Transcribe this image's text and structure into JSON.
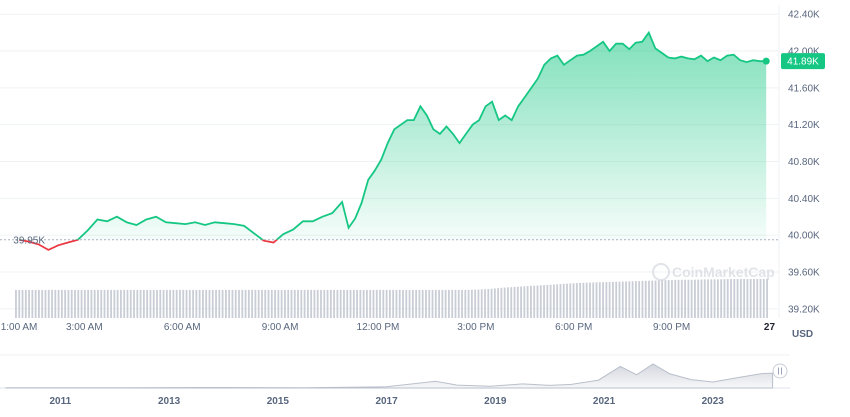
{
  "chart_data": {
    "type": "area",
    "currency_label": "USD",
    "baseline": {
      "value": 39950,
      "label": "39.95K"
    },
    "current": {
      "value": 41890,
      "label": "41.89K"
    },
    "ylim": [
      39100,
      42500
    ],
    "y_ticks": [
      {
        "value": 42400,
        "label": "42.40K"
      },
      {
        "value": 42000,
        "label": "42.00K"
      },
      {
        "value": 41600,
        "label": "41.60K"
      },
      {
        "value": 41200,
        "label": "41.20K"
      },
      {
        "value": 40800,
        "label": "40.80K"
      },
      {
        "value": 40400,
        "label": "40.40K"
      },
      {
        "value": 40000,
        "label": "40.00K"
      },
      {
        "value": 39600,
        "label": "39.60K"
      },
      {
        "value": 39200,
        "label": "39.20K"
      }
    ],
    "xlim": [
      0.6,
      24.2
    ],
    "x_ticks": [
      {
        "value": 1,
        "label": "1:00 AM"
      },
      {
        "value": 3,
        "label": "3:00 AM"
      },
      {
        "value": 6,
        "label": "6:00 AM"
      },
      {
        "value": 9,
        "label": "9:00 AM"
      },
      {
        "value": 12,
        "label": "12:00 PM"
      },
      {
        "value": 15,
        "label": "3:00 PM"
      },
      {
        "value": 18,
        "label": "6:00 PM"
      },
      {
        "value": 21,
        "label": "9:00 PM"
      },
      {
        "value": 24,
        "label": "27"
      }
    ],
    "colors": {
      "up": "#16c784",
      "down": "#ea3943",
      "volume": "#c9cdd6",
      "grid": "#eff2f5",
      "axis_text": "#58667e"
    },
    "price": {
      "x": [
        1.0,
        1.3,
        1.6,
        1.9,
        2.2,
        2.5,
        2.8,
        3.1,
        3.4,
        3.7,
        4.0,
        4.3,
        4.6,
        4.9,
        5.2,
        5.5,
        5.8,
        6.1,
        6.4,
        6.7,
        7.0,
        7.3,
        7.6,
        7.9,
        8.2,
        8.5,
        8.8,
        9.1,
        9.4,
        9.7,
        10.0,
        10.3,
        10.6,
        10.9,
        11.1,
        11.3,
        11.5,
        11.7,
        11.9,
        12.1,
        12.3,
        12.5,
        12.7,
        12.9,
        13.1,
        13.3,
        13.5,
        13.7,
        13.9,
        14.1,
        14.3,
        14.5,
        14.7,
        14.9,
        15.1,
        15.3,
        15.5,
        15.7,
        15.9,
        16.1,
        16.3,
        16.5,
        16.7,
        16.9,
        17.1,
        17.3,
        17.5,
        17.7,
        17.9,
        18.1,
        18.3,
        18.5,
        18.7,
        18.9,
        19.1,
        19.3,
        19.5,
        19.7,
        19.9,
        20.1,
        20.3,
        20.5,
        20.7,
        20.9,
        21.1,
        21.3,
        21.5,
        21.7,
        21.9,
        22.1,
        22.3,
        22.5,
        22.7,
        22.9,
        23.1,
        23.3,
        23.5,
        23.7,
        23.9
      ],
      "values": [
        39950,
        39930,
        39900,
        39840,
        39890,
        39920,
        39950,
        40050,
        40170,
        40150,
        40200,
        40140,
        40110,
        40170,
        40200,
        40140,
        40130,
        40120,
        40140,
        40110,
        40140,
        40130,
        40120,
        40100,
        40020,
        39940,
        39920,
        40010,
        40060,
        40150,
        40150,
        40200,
        40240,
        40360,
        40080,
        40180,
        40350,
        40600,
        40700,
        40820,
        41000,
        41150,
        41200,
        41250,
        41250,
        41400,
        41300,
        41150,
        41100,
        41180,
        41100,
        41000,
        41100,
        41200,
        41250,
        41400,
        41450,
        41250,
        41300,
        41250,
        41400,
        41500,
        41600,
        41700,
        41850,
        41920,
        41950,
        41850,
        41900,
        41950,
        41960,
        42000,
        42050,
        42100,
        42000,
        42080,
        42080,
        42020,
        42090,
        42100,
        42200,
        42030,
        41980,
        41930,
        41920,
        41940,
        41920,
        41910,
        41950,
        41890,
        41930,
        41900,
        41950,
        41960,
        41900,
        41880,
        41900,
        41890,
        41890
      ]
    },
    "volume_x": [
      1.0,
      24.0
    ],
    "volume_relative": [
      0.72,
      0.72,
      0.72,
      0.72,
      0.72,
      0.72,
      0.72,
      0.72,
      0.72,
      0.72,
      0.72,
      0.72,
      0.72,
      0.72,
      0.72,
      0.72,
      0.72,
      0.72,
      0.72,
      0.72,
      0.72,
      0.72,
      0.72,
      0.72,
      0.72,
      0.72,
      0.72,
      0.72,
      0.72,
      0.72,
      0.72,
      0.72,
      0.72,
      0.72,
      0.72,
      0.72,
      0.72,
      0.73,
      0.75,
      0.78,
      0.8,
      0.82,
      0.84,
      0.86,
      0.88,
      0.9,
      0.91,
      0.92,
      0.93,
      0.94,
      0.95,
      0.96,
      0.97,
      0.98,
      0.98,
      0.99,
      0.99,
      1.0,
      1.0,
      1.0,
      1.0
    ],
    "navigator": {
      "x_ticks": [
        "2011",
        "2013",
        "2015",
        "2017",
        "2019",
        "2021",
        "2023"
      ],
      "x_tick_years": [
        2011,
        2013,
        2015,
        2017,
        2019,
        2021,
        2023
      ],
      "xlim": [
        2010.0,
        2024.2
      ],
      "history": [
        [
          2010.0,
          0.01
        ],
        [
          2012.0,
          0.01
        ],
        [
          2013.8,
          0.02
        ],
        [
          2015.5,
          0.01
        ],
        [
          2017.0,
          0.05
        ],
        [
          2017.9,
          0.28
        ],
        [
          2018.3,
          0.12
        ],
        [
          2018.9,
          0.07
        ],
        [
          2019.5,
          0.17
        ],
        [
          2020.0,
          0.11
        ],
        [
          2020.4,
          0.15
        ],
        [
          2020.9,
          0.33
        ],
        [
          2021.3,
          0.9
        ],
        [
          2021.6,
          0.55
        ],
        [
          2021.9,
          1.0
        ],
        [
          2022.2,
          0.6
        ],
        [
          2022.6,
          0.35
        ],
        [
          2023.0,
          0.25
        ],
        [
          2023.5,
          0.45
        ],
        [
          2023.9,
          0.6
        ],
        [
          2024.1,
          0.62
        ]
      ]
    }
  }
}
